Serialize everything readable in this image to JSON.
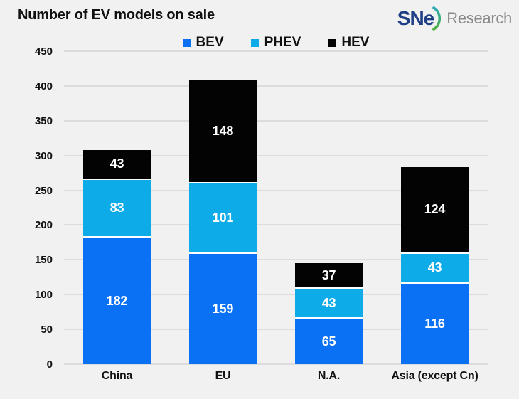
{
  "header": {
    "title": "Number of EV models on sale",
    "logo": {
      "sne": "SNe",
      "research": "Research"
    }
  },
  "chart_data": {
    "type": "bar",
    "stacked": true,
    "title": "Number of EV models on sale",
    "categories": [
      "China",
      "EU",
      "N.A.",
      "Asia (except Cn)"
    ],
    "series": [
      {
        "name": "BEV",
        "color": "#0a70f4",
        "values": [
          182,
          159,
          65,
          116
        ]
      },
      {
        "name": "PHEV",
        "color": "#0dabe8",
        "values": [
          83,
          101,
          43,
          43
        ]
      },
      {
        "name": "HEV",
        "color": "#030303",
        "values": [
          43,
          148,
          37,
          124
        ]
      }
    ],
    "totals": [
      308,
      408,
      145,
      283
    ],
    "xlabel": "",
    "ylabel": "",
    "ylim": [
      0,
      450
    ],
    "yticks": [
      0,
      50,
      100,
      150,
      200,
      250,
      300,
      350,
      400,
      450
    ],
    "grid": true,
    "legend_position": "top-center"
  },
  "colors": {
    "background": "#f1f1f1",
    "gridline": "#dcdcdc",
    "segment_label": "#ffffff",
    "axis_text": "#111111",
    "segment_separator": "#ffffff",
    "logo_navy": "#1e3f85",
    "logo_green": "#4caf3f",
    "logo_teal": "#2fa9b5",
    "logo_gray": "#8a8a8a"
  }
}
